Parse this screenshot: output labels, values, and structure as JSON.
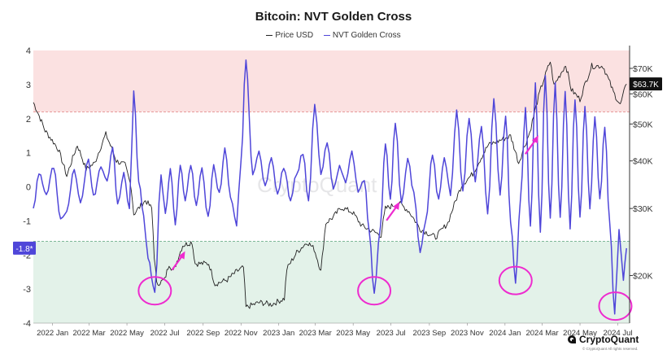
{
  "chart_data": {
    "type": "line",
    "title": "Bitcoin: NVT Golden Cross",
    "legend": {
      "placement": "top-center"
    },
    "series": [
      {
        "name": "Price USD",
        "axis": "right",
        "color": "#222222",
        "points": [
          [
            "2021-12-01",
            57000
          ],
          [
            "2021-12-20",
            48000
          ],
          [
            "2022-01-10",
            43000
          ],
          [
            "2022-01-24",
            36500
          ],
          [
            "2022-02-10",
            44000
          ],
          [
            "2022-02-24",
            38000
          ],
          [
            "2022-03-10",
            39500
          ],
          [
            "2022-03-28",
            47000
          ],
          [
            "2022-04-14",
            40000
          ],
          [
            "2022-04-28",
            39000
          ],
          [
            "2022-05-08",
            34000
          ],
          [
            "2022-05-12",
            29000
          ],
          [
            "2022-05-31",
            31500
          ],
          [
            "2022-06-10",
            30000
          ],
          [
            "2022-06-14",
            22500
          ],
          [
            "2022-06-18",
            19000
          ],
          [
            "2022-07-01",
            19500
          ],
          [
            "2022-07-08",
            21500
          ],
          [
            "2022-07-15",
            20500
          ],
          [
            "2022-07-30",
            24000
          ],
          [
            "2022-08-14",
            24500
          ],
          [
            "2022-08-19",
            21500
          ],
          [
            "2022-09-10",
            21500
          ],
          [
            "2022-09-20",
            19000
          ],
          [
            "2022-10-10",
            19500
          ],
          [
            "2022-10-25",
            20500
          ],
          [
            "2022-11-05",
            21000
          ],
          [
            "2022-11-09",
            16500
          ],
          [
            "2022-12-01",
            17000
          ],
          [
            "2022-12-20",
            16800
          ],
          [
            "2023-01-10",
            17400
          ],
          [
            "2023-01-14",
            20800
          ],
          [
            "2023-01-30",
            23000
          ],
          [
            "2023-02-16",
            24500
          ],
          [
            "2023-02-27",
            23500
          ],
          [
            "2023-03-10",
            20500
          ],
          [
            "2023-03-18",
            27500
          ],
          [
            "2023-03-30",
            28500
          ],
          [
            "2023-04-12",
            30200
          ],
          [
            "2023-04-30",
            29300
          ],
          [
            "2023-05-15",
            27000
          ],
          [
            "2023-06-15",
            25500
          ],
          [
            "2023-06-22",
            30000
          ],
          [
            "2023-07-14",
            31000
          ],
          [
            "2023-07-30",
            29500
          ],
          [
            "2023-08-17",
            26500
          ],
          [
            "2023-09-11",
            25200
          ],
          [
            "2023-10-01",
            27500
          ],
          [
            "2023-10-23",
            34500
          ],
          [
            "2023-11-10",
            37000
          ],
          [
            "2023-12-05",
            44000
          ],
          [
            "2024-01-10",
            46500
          ],
          [
            "2024-01-23",
            39500
          ],
          [
            "2024-02-10",
            47500
          ],
          [
            "2024-02-28",
            62000
          ],
          [
            "2024-03-14",
            73000
          ],
          [
            "2024-03-20",
            63000
          ],
          [
            "2024-04-08",
            71500
          ],
          [
            "2024-04-17",
            61500
          ],
          [
            "2024-05-01",
            58000
          ],
          [
            "2024-05-20",
            71000
          ],
          [
            "2024-06-07",
            71000
          ],
          [
            "2024-06-24",
            60500
          ],
          [
            "2024-07-05",
            56000
          ],
          [
            "2024-07-15",
            63700
          ]
        ]
      },
      {
        "name": "NVT Golden Cross",
        "axis": "left",
        "color": "#4f46d9",
        "points": [
          [
            "2021-12-01",
            -0.6
          ],
          [
            "2021-12-10",
            0.4
          ],
          [
            "2021-12-22",
            -0.2
          ],
          [
            "2022-01-03",
            0.6
          ],
          [
            "2022-01-14",
            -1.0
          ],
          [
            "2022-01-24",
            -0.7
          ],
          [
            "2022-02-05",
            0.5
          ],
          [
            "2022-02-15",
            -0.5
          ],
          [
            "2022-02-28",
            0.8
          ],
          [
            "2022-03-08",
            -0.3
          ],
          [
            "2022-03-20",
            0.6
          ],
          [
            "2022-03-30",
            0.2
          ],
          [
            "2022-04-08",
            1.2
          ],
          [
            "2022-04-16",
            -0.5
          ],
          [
            "2022-04-26",
            0.4
          ],
          [
            "2022-05-05",
            -0.6
          ],
          [
            "2022-05-12",
            2.8
          ],
          [
            "2022-05-20",
            0.2
          ],
          [
            "2022-05-28",
            -0.9
          ],
          [
            "2022-06-04",
            -2.1
          ],
          [
            "2022-06-15",
            -3.1
          ],
          [
            "2022-06-25",
            0.4
          ],
          [
            "2022-07-02",
            -0.8
          ],
          [
            "2022-07-10",
            0.5
          ],
          [
            "2022-07-18",
            -1.1
          ],
          [
            "2022-07-26",
            0.6
          ],
          [
            "2022-08-03",
            -0.4
          ],
          [
            "2022-08-12",
            0.6
          ],
          [
            "2022-08-21",
            -0.5
          ],
          [
            "2022-08-30",
            0.5
          ],
          [
            "2022-09-09",
            -0.9
          ],
          [
            "2022-09-18",
            0.6
          ],
          [
            "2022-09-27",
            -0.2
          ],
          [
            "2022-10-06",
            1.1
          ],
          [
            "2022-10-15",
            -0.3
          ],
          [
            "2022-10-25",
            -1.1
          ],
          [
            "2022-11-01",
            0.8
          ],
          [
            "2022-11-09",
            3.7
          ],
          [
            "2022-11-20",
            0.4
          ],
          [
            "2022-11-30",
            1.0
          ],
          [
            "2022-12-10",
            0.0
          ],
          [
            "2022-12-20",
            0.9
          ],
          [
            "2022-12-30",
            -0.2
          ],
          [
            "2023-01-09",
            0.6
          ],
          [
            "2023-01-20",
            -0.4
          ],
          [
            "2023-01-30",
            0.4
          ],
          [
            "2023-02-09",
            1.0
          ],
          [
            "2023-02-18",
            -0.4
          ],
          [
            "2023-02-28",
            2.4
          ],
          [
            "2023-03-10",
            0.4
          ],
          [
            "2023-03-20",
            1.3
          ],
          [
            "2023-03-30",
            -0.1
          ],
          [
            "2023-04-09",
            0.6
          ],
          [
            "2023-04-19",
            0.1
          ],
          [
            "2023-04-29",
            1.0
          ],
          [
            "2023-05-09",
            -0.1
          ],
          [
            "2023-05-19",
            0.2
          ],
          [
            "2023-05-27",
            -1.3
          ],
          [
            "2023-06-04",
            -3.1
          ],
          [
            "2023-06-14",
            -1.2
          ],
          [
            "2023-06-22",
            1.3
          ],
          [
            "2023-06-30",
            -0.4
          ],
          [
            "2023-07-08",
            1.9
          ],
          [
            "2023-07-18",
            -0.5
          ],
          [
            "2023-07-28",
            0.8
          ],
          [
            "2023-08-07",
            -0.2
          ],
          [
            "2023-08-17",
            -1.9
          ],
          [
            "2023-08-26",
            -1.0
          ],
          [
            "2023-09-06",
            0.9
          ],
          [
            "2023-09-16",
            -0.4
          ],
          [
            "2023-09-25",
            0.9
          ],
          [
            "2023-10-05",
            -0.2
          ],
          [
            "2023-10-15",
            2.2
          ],
          [
            "2023-10-25",
            -0.1
          ],
          [
            "2023-11-04",
            2.0
          ],
          [
            "2023-11-14",
            0.2
          ],
          [
            "2023-11-24",
            1.8
          ],
          [
            "2023-12-04",
            -0.8
          ],
          [
            "2023-12-14",
            2.6
          ],
          [
            "2023-12-24",
            -0.2
          ],
          [
            "2024-01-02",
            2.1
          ],
          [
            "2024-01-10",
            -1.0
          ],
          [
            "2024-01-18",
            -2.8
          ],
          [
            "2024-01-26",
            -0.4
          ],
          [
            "2024-02-03",
            2.3
          ],
          [
            "2024-02-11",
            -1.2
          ],
          [
            "2024-02-19",
            3.0
          ],
          [
            "2024-02-27",
            -1.3
          ],
          [
            "2024-03-06",
            3.3
          ],
          [
            "2024-03-14",
            -0.9
          ],
          [
            "2024-03-22",
            3.0
          ],
          [
            "2024-03-30",
            -0.9
          ],
          [
            "2024-04-07",
            2.8
          ],
          [
            "2024-04-15",
            -1.2
          ],
          [
            "2024-04-23",
            2.6
          ],
          [
            "2024-05-01",
            -0.9
          ],
          [
            "2024-05-09",
            2.4
          ],
          [
            "2024-05-17",
            -0.6
          ],
          [
            "2024-05-25",
            2.0
          ],
          [
            "2024-06-02",
            -0.3
          ],
          [
            "2024-06-10",
            1.7
          ],
          [
            "2024-06-18",
            -1.1
          ],
          [
            "2024-06-26",
            -3.7
          ],
          [
            "2024-07-03",
            -1.3
          ],
          [
            "2024-07-10",
            -2.7
          ],
          [
            "2024-07-15",
            -1.8
          ]
        ]
      }
    ],
    "x_axis": {
      "ticks": [
        "2022 Jan",
        "2022 Mar",
        "2022 May",
        "2022 Jul",
        "2022 Sep",
        "2022 Nov",
        "2023 Jan",
        "2023 Mar",
        "2023 May",
        "2023 Jul",
        "2023 Sep",
        "2023 Nov",
        "2024 Jan",
        "2024 Mar",
        "2024 May",
        "2024 Jul"
      ],
      "range": [
        "2021-12-01",
        "2024-07-20"
      ]
    },
    "y_axis_left": {
      "ticks": [
        "4",
        "3",
        "2",
        "1",
        "0",
        "-1",
        "-2",
        "-3",
        "-4"
      ],
      "range": [
        -4,
        4
      ]
    },
    "y_axis_right": {
      "scale": "log",
      "ticks": [
        "$70K",
        "$60K",
        "$50K",
        "$40K",
        "$30K",
        "$20K"
      ],
      "range": [
        15000,
        78000
      ]
    },
    "bands": {
      "upper_threshold": 2.2,
      "lower_threshold": -1.6,
      "upper_color": "#fbe1e1",
      "lower_color": "#e3f2e9"
    },
    "current_value_labels": {
      "left": "-1.8*",
      "right": "$63.7K"
    },
    "grid": false,
    "watermark": "CryptoQuant",
    "annotations": {
      "circles": [
        [
          "2022-06-15",
          -3.05
        ],
        [
          "2023-06-04",
          -3.05
        ],
        [
          "2024-01-18",
          -2.75
        ],
        [
          "2024-06-27",
          -3.5
        ]
      ],
      "arrows": [
        [
          "2022-07-22",
          -2.2
        ],
        [
          "2023-07-03",
          -0.75
        ],
        [
          "2024-02-12",
          1.2
        ]
      ]
    }
  },
  "footer": {
    "brand": "CryptoQuant",
    "copyright": "© CryptoQuant All rights reserved."
  }
}
